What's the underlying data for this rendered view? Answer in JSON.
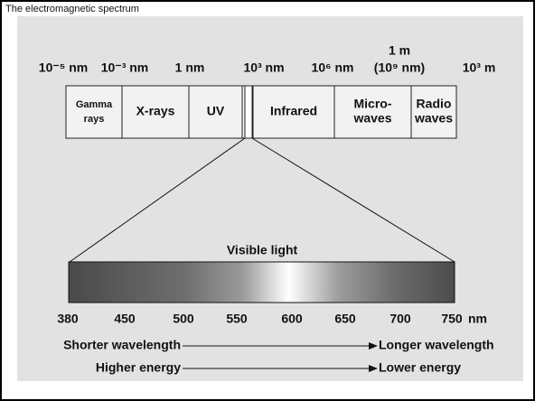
{
  "header": {
    "title": "The electromagnetic spectrum"
  },
  "scale": {
    "labels": [
      "10⁻⁵ nm",
      "10⁻³ nm",
      "1 nm",
      "10³ nm",
      "10⁶ nm",
      "1 m",
      "(10⁹ nm)",
      "10³ m"
    ]
  },
  "bands": [
    {
      "lines": [
        "Gamma",
        "rays"
      ]
    },
    {
      "lines": [
        "X-rays"
      ]
    },
    {
      "lines": [
        "UV"
      ]
    },
    {
      "lines": [
        "Infrared"
      ]
    },
    {
      "lines": [
        "Micro-",
        "waves"
      ]
    },
    {
      "lines": [
        "Radio",
        "waves"
      ]
    }
  ],
  "visible": {
    "title": "Visible light",
    "ticks": [
      "380",
      "450",
      "500",
      "550",
      "600",
      "650",
      "700",
      "750"
    ],
    "unit": "nm"
  },
  "arrows": [
    {
      "from": "Shorter wavelength",
      "to": "Longer wavelength"
    },
    {
      "from": "Higher energy",
      "to": "Lower energy"
    }
  ]
}
